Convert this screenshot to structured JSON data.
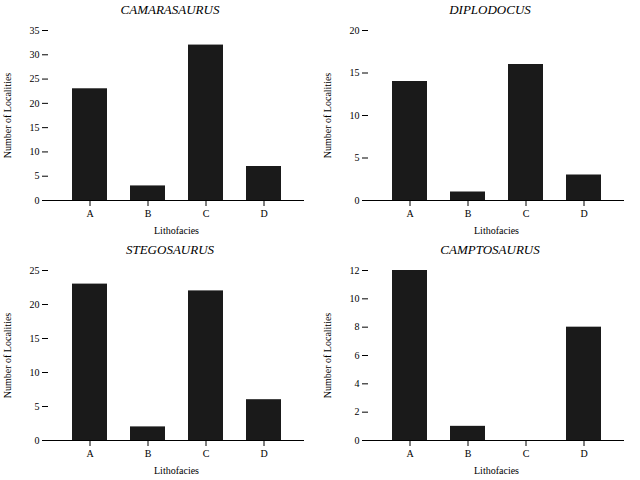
{
  "chart_data": [
    {
      "type": "bar",
      "title": "CAMARASAURUS",
      "categories": [
        "A",
        "B",
        "C",
        "D"
      ],
      "values": [
        23,
        3,
        32,
        7
      ],
      "color": "#1a1a1a",
      "xlabel": "Lithofacies",
      "ylabel": "Number of Localities",
      "ylim": [
        0,
        35
      ],
      "yticks": [
        0,
        5,
        10,
        15,
        20,
        25,
        30,
        35
      ],
      "grid": false
    },
    {
      "type": "bar",
      "title": "DIPLODOCUS",
      "categories": [
        "A",
        "B",
        "C",
        "D"
      ],
      "values": [
        14,
        1,
        16,
        3
      ],
      "color": "#1a1a1a",
      "xlabel": "Lithofacies",
      "ylabel": "Number of Localities",
      "ylim": [
        0,
        20
      ],
      "yticks": [
        0,
        5,
        10,
        15,
        20
      ],
      "grid": false
    },
    {
      "type": "bar",
      "title": "STEGOSAURUS",
      "categories": [
        "A",
        "B",
        "C",
        "D"
      ],
      "values": [
        23,
        2,
        22,
        6
      ],
      "color": "#1a1a1a",
      "xlabel": "Lithofacies",
      "ylabel": "Number of Localities",
      "ylim": [
        0,
        25
      ],
      "yticks": [
        0,
        5,
        10,
        15,
        20,
        25
      ],
      "grid": false
    },
    {
      "type": "bar",
      "title": "CAMPTOSAURUS",
      "categories": [
        "A",
        "B",
        "C",
        "D"
      ],
      "values": [
        12,
        1,
        0,
        8
      ],
      "color": "#1a1a1a",
      "xlabel": "Lithofacies",
      "ylabel": "Number of Localities",
      "ylim": [
        0,
        12
      ],
      "yticks": [
        0,
        2,
        4,
        6,
        8,
        10,
        12
      ],
      "grid": false
    }
  ]
}
